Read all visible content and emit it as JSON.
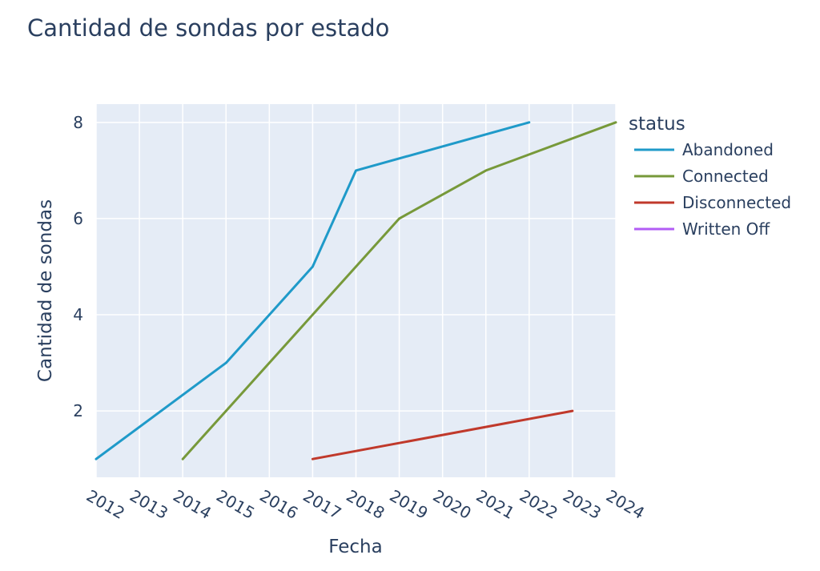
{
  "chart_data": {
    "type": "line",
    "title": "Cantidad de sondas por estado",
    "xlabel": "Fecha",
    "ylabel": "Cantidad de sondas",
    "x_ticks": [
      "2012",
      "2013",
      "2014",
      "2015",
      "2016",
      "2017",
      "2018",
      "2019",
      "2020",
      "2021",
      "2022",
      "2023",
      "2024"
    ],
    "xlim": [
      2012,
      2024
    ],
    "ylim": [
      0.62,
      8.38
    ],
    "y_ticks": [
      2,
      4,
      6,
      8
    ],
    "grid": true,
    "legend": {
      "title": "status",
      "position": "right"
    },
    "plot_bgcolor": "#e5ecf6",
    "series": [
      {
        "name": "Abandoned",
        "color": "#1f9ac9",
        "points": [
          [
            2012,
            1
          ],
          [
            2015,
            3
          ],
          [
            2017,
            5
          ],
          [
            2018,
            7
          ],
          [
            2022,
            8
          ]
        ]
      },
      {
        "name": "Connected",
        "color": "#77993a",
        "points": [
          [
            2014,
            1
          ],
          [
            2017,
            4
          ],
          [
            2019,
            6
          ],
          [
            2021,
            7
          ],
          [
            2024,
            8
          ]
        ]
      },
      {
        "name": "Disconnected",
        "color": "#c0392b",
        "points": [
          [
            2017,
            1
          ],
          [
            2023,
            2
          ]
        ]
      },
      {
        "name": "Written Off",
        "color": "#b25cf5",
        "points": []
      }
    ]
  }
}
